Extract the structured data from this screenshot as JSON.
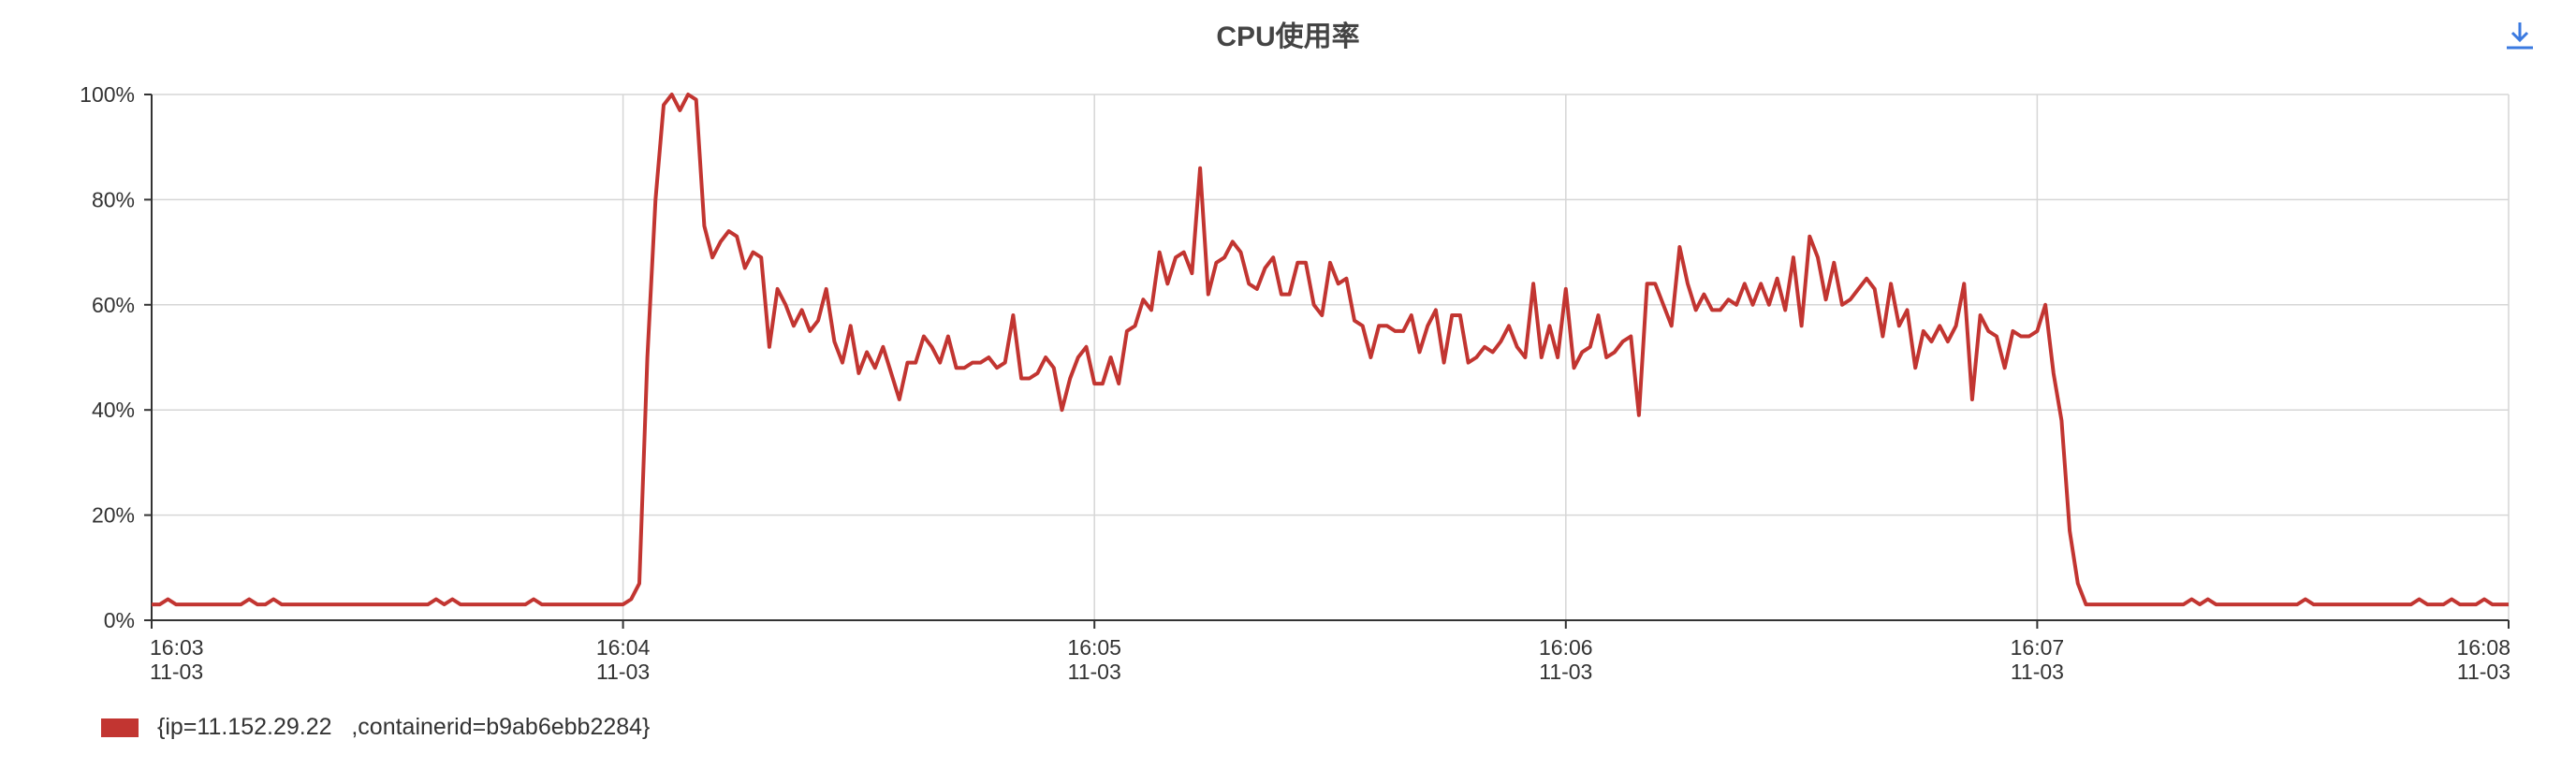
{
  "chart_data": {
    "type": "line",
    "title": "CPU使用率",
    "y_ticks": [
      "0%",
      "20%",
      "40%",
      "60%",
      "80%",
      "100%"
    ],
    "ylim": [
      0,
      100
    ],
    "x_ticks": [
      {
        "time": "16:03",
        "date": "11-03"
      },
      {
        "time": "16:04",
        "date": "11-03"
      },
      {
        "time": "16:05",
        "date": "11-03"
      },
      {
        "time": "16:06",
        "date": "11-03"
      },
      {
        "time": "16:07",
        "date": "11-03"
      },
      {
        "time": "16:08",
        "date": "11-03"
      }
    ],
    "xlim": [
      "16:03",
      "16:08"
    ],
    "grid": true,
    "legend_position": "bottom-left",
    "series": [
      {
        "name": "{ip=11.152.29.22   ,containerid=b9ab6ebb2284}",
        "color": "#c23531",
        "values": [
          3,
          3,
          4,
          3,
          3,
          3,
          3,
          3,
          3,
          3,
          3,
          3,
          4,
          3,
          3,
          4,
          3,
          3,
          3,
          3,
          3,
          3,
          3,
          3,
          3,
          3,
          3,
          3,
          3,
          3,
          3,
          3,
          3,
          3,
          3,
          4,
          3,
          4,
          3,
          3,
          3,
          3,
          3,
          3,
          3,
          3,
          3,
          4,
          3,
          3,
          3,
          3,
          3,
          3,
          3,
          3,
          3,
          3,
          3,
          4,
          7,
          50,
          80,
          98,
          100,
          97,
          100,
          99,
          75,
          69,
          72,
          74,
          73,
          67,
          70,
          69,
          52,
          63,
          60,
          56,
          59,
          55,
          57,
          63,
          53,
          49,
          56,
          47,
          51,
          48,
          52,
          47,
          42,
          49,
          49,
          54,
          52,
          49,
          54,
          48,
          48,
          49,
          49,
          50,
          48,
          49,
          58,
          46,
          46,
          47,
          50,
          48,
          40,
          46,
          50,
          52,
          45,
          45,
          50,
          45,
          55,
          56,
          61,
          59,
          70,
          64,
          69,
          70,
          66,
          86,
          62,
          68,
          69,
          72,
          70,
          64,
          63,
          67,
          69,
          62,
          62,
          68,
          68,
          60,
          58,
          68,
          64,
          65,
          57,
          56,
          50,
          56,
          56,
          55,
          55,
          58,
          51,
          56,
          59,
          49,
          58,
          58,
          49,
          50,
          52,
          51,
          53,
          56,
          52,
          50,
          64,
          50,
          56,
          50,
          63,
          48,
          51,
          52,
          58,
          50,
          51,
          53,
          54,
          39,
          64,
          64,
          60,
          56,
          71,
          64,
          59,
          62,
          59,
          59,
          61,
          60,
          64,
          60,
          64,
          60,
          65,
          59,
          69,
          56,
          73,
          69,
          61,
          68,
          60,
          61,
          63,
          65,
          63,
          54,
          64,
          56,
          59,
          48,
          55,
          53,
          56,
          53,
          56,
          64,
          42,
          58,
          55,
          54,
          48,
          55,
          54,
          54,
          55,
          60,
          47,
          38,
          17,
          7,
          3,
          3,
          3,
          3,
          3,
          3,
          3,
          3,
          3,
          3,
          3,
          3,
          3,
          4,
          3,
          4,
          3,
          3,
          3,
          3,
          3,
          3,
          3,
          3,
          3,
          3,
          3,
          4,
          3,
          3,
          3,
          3,
          3,
          3,
          3,
          3,
          3,
          3,
          3,
          3,
          3,
          4,
          3,
          3,
          3,
          4,
          3,
          3,
          3,
          4,
          3,
          3,
          3
        ]
      }
    ]
  },
  "toolbar": {
    "download_icon": "download-arrow-icon",
    "accent_color": "#3b7ae0"
  }
}
